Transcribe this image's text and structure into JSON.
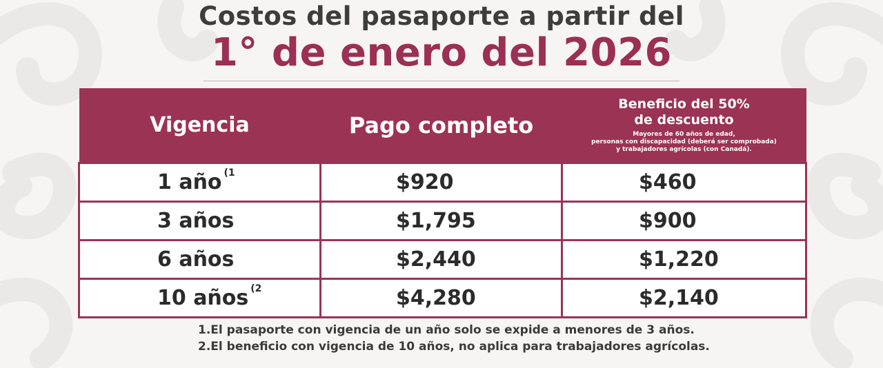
{
  "header": {
    "title_line1": "Costos del pasaporte a partir del",
    "title_line2": "1° de enero del 2026"
  },
  "table": {
    "columns": {
      "vigencia": "Vigencia",
      "pago_completo": "Pago completo",
      "beneficio_title_1": "Beneficio del 50%",
      "beneficio_title_2": "de descuento",
      "beneficio_note_1": "Mayores de 60 años de edad,",
      "beneficio_note_2": "personas con discapacidad (deberá ser comprobada)",
      "beneficio_note_3": "y trabajadores agrícolas (con Canadá)."
    },
    "rows": [
      {
        "vigencia": "1 año",
        "ref": "(1",
        "pago": "$920",
        "beneficio": "$460"
      },
      {
        "vigencia": "3 años",
        "ref": "",
        "pago": "$1,795",
        "beneficio": "$900"
      },
      {
        "vigencia": "6 años",
        "ref": "",
        "pago": "$2,440",
        "beneficio": "$1,220"
      },
      {
        "vigencia": "10 años",
        "ref": "(2",
        "pago": "$4,280",
        "beneficio": "$2,140"
      }
    ]
  },
  "footnotes": [
    "1.El pasaporte con vigencia de un año solo se expide a menores de 3 años.",
    "2.El beneficio con vigencia de 10 años, no aplica para trabajadores agrícolas."
  ],
  "colors": {
    "accent": "#9b3355",
    "title_dark": "#3d3d3d",
    "background": "#f6f5f4"
  }
}
